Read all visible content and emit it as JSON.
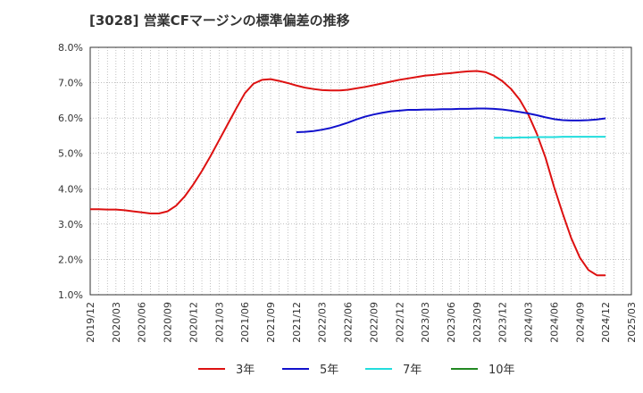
{
  "chart_data": {
    "type": "line",
    "title": "[3028]  営業CFマージンの標準偏差の推移",
    "xlabel": "",
    "ylabel": "",
    "ylim": [
      1.0,
      8.0
    ],
    "yticks": [
      "1.0%",
      "2.0%",
      "3.0%",
      "4.0%",
      "5.0%",
      "6.0%",
      "7.0%",
      "8.0%"
    ],
    "xticks": [
      "2019/12",
      "2020/03",
      "2020/06",
      "2020/09",
      "2020/12",
      "2021/03",
      "2021/06",
      "2021/09",
      "2021/12",
      "2022/03",
      "2022/06",
      "2022/09",
      "2022/12",
      "2023/03",
      "2023/06",
      "2023/09",
      "2023/12",
      "2024/03",
      "2024/06",
      "2024/09",
      "2024/12",
      "2025/03"
    ],
    "grid": true,
    "legend_position": "bottom",
    "series": [
      {
        "name": "3年",
        "color": "#dd1111",
        "x": [
          "2019/12",
          "2020/01",
          "2020/02",
          "2020/03",
          "2020/04",
          "2020/05",
          "2020/06",
          "2020/07",
          "2020/08",
          "2020/09",
          "2020/10",
          "2020/11",
          "2020/12",
          "2021/01",
          "2021/02",
          "2021/03",
          "2021/04",
          "2021/05",
          "2021/06",
          "2021/07",
          "2021/08",
          "2021/09",
          "2021/10",
          "2021/11",
          "2021/12",
          "2022/01",
          "2022/02",
          "2022/03",
          "2022/04",
          "2022/05",
          "2022/06",
          "2022/07",
          "2022/08",
          "2022/09",
          "2022/10",
          "2022/11",
          "2022/12",
          "2023/01",
          "2023/02",
          "2023/03",
          "2023/04",
          "2023/05",
          "2023/06",
          "2023/07",
          "2023/08",
          "2023/09",
          "2023/10",
          "2023/11",
          "2023/12",
          "2024/01",
          "2024/02",
          "2024/03",
          "2024/04",
          "2024/05",
          "2024/06",
          "2024/07",
          "2024/08",
          "2024/09",
          "2024/10",
          "2024/11",
          "2024/12"
        ],
        "values": [
          3.42,
          3.42,
          3.41,
          3.41,
          3.39,
          3.36,
          3.33,
          3.3,
          3.3,
          3.36,
          3.52,
          3.78,
          4.12,
          4.5,
          4.92,
          5.37,
          5.82,
          6.27,
          6.7,
          6.97,
          7.08,
          7.1,
          7.05,
          6.99,
          6.92,
          6.86,
          6.82,
          6.79,
          6.78,
          6.78,
          6.8,
          6.84,
          6.88,
          6.93,
          6.98,
          7.03,
          7.08,
          7.12,
          7.16,
          7.2,
          7.22,
          7.25,
          7.27,
          7.3,
          7.32,
          7.33,
          7.3,
          7.2,
          7.04,
          6.82,
          6.52,
          6.1,
          5.55,
          4.88,
          4.05,
          3.3,
          2.6,
          2.05,
          1.7,
          1.55,
          1.55
        ]
      },
      {
        "name": "5年",
        "color": "#1111cc",
        "x": [
          "2021/12",
          "2022/01",
          "2022/02",
          "2022/03",
          "2022/04",
          "2022/05",
          "2022/06",
          "2022/07",
          "2022/08",
          "2022/09",
          "2022/10",
          "2022/11",
          "2022/12",
          "2023/01",
          "2023/02",
          "2023/03",
          "2023/04",
          "2023/05",
          "2023/06",
          "2023/07",
          "2023/08",
          "2023/09",
          "2023/10",
          "2023/11",
          "2023/12",
          "2024/01",
          "2024/02",
          "2024/03",
          "2024/04",
          "2024/05",
          "2024/06",
          "2024/07",
          "2024/08",
          "2024/09",
          "2024/10",
          "2024/11",
          "2024/12"
        ],
        "values": [
          5.6,
          5.61,
          5.63,
          5.67,
          5.72,
          5.79,
          5.87,
          5.96,
          6.04,
          6.1,
          6.15,
          6.19,
          6.21,
          6.23,
          6.23,
          6.24,
          6.24,
          6.25,
          6.25,
          6.26,
          6.26,
          6.27,
          6.27,
          6.26,
          6.24,
          6.21,
          6.17,
          6.13,
          6.08,
          6.02,
          5.97,
          5.94,
          5.93,
          5.93,
          5.94,
          5.96,
          5.99
        ]
      },
      {
        "name": "7年",
        "color": "#22dddd",
        "x": [
          "2023/11",
          "2023/12",
          "2024/01",
          "2024/02",
          "2024/03",
          "2024/04",
          "2024/05",
          "2024/06",
          "2024/07",
          "2024/08",
          "2024/09",
          "2024/10",
          "2024/11",
          "2024/12"
        ],
        "values": [
          5.44,
          5.44,
          5.44,
          5.45,
          5.45,
          5.46,
          5.46,
          5.46,
          5.47,
          5.47,
          5.47,
          5.47,
          5.47,
          5.47
        ]
      },
      {
        "name": "10年",
        "color": "#228822",
        "x": [],
        "values": []
      }
    ]
  }
}
